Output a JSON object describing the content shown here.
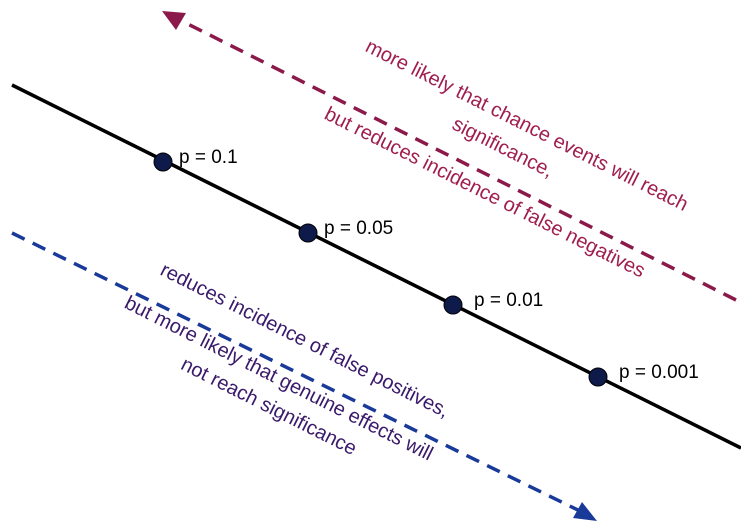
{
  "colors": {
    "main_line": "#000000",
    "point_fill": "#0d1a4a",
    "upper_arrow": "#8b1a4a",
    "upper_text": "#a01e4f",
    "lower_arrow": "#1a3a9a",
    "lower_text": "#3a1a6a"
  },
  "points": [
    {
      "label": "p = 0.1"
    },
    {
      "label": "p = 0.05"
    },
    {
      "label": "p = 0.01"
    },
    {
      "label": "p = 0.001"
    }
  ],
  "upper_note": {
    "line1": "more likely that chance events will reach",
    "line2": "significance,",
    "line3": "but reduces incidence of false negatives"
  },
  "lower_note": {
    "line1": "reduces incidence of false positives,",
    "line2": "but more likely that genuine effects will",
    "line3": "not reach significance"
  },
  "icons": {
    "upper_arrow": "dashed-arrow-up-left",
    "lower_arrow": "dashed-arrow-down-right"
  }
}
